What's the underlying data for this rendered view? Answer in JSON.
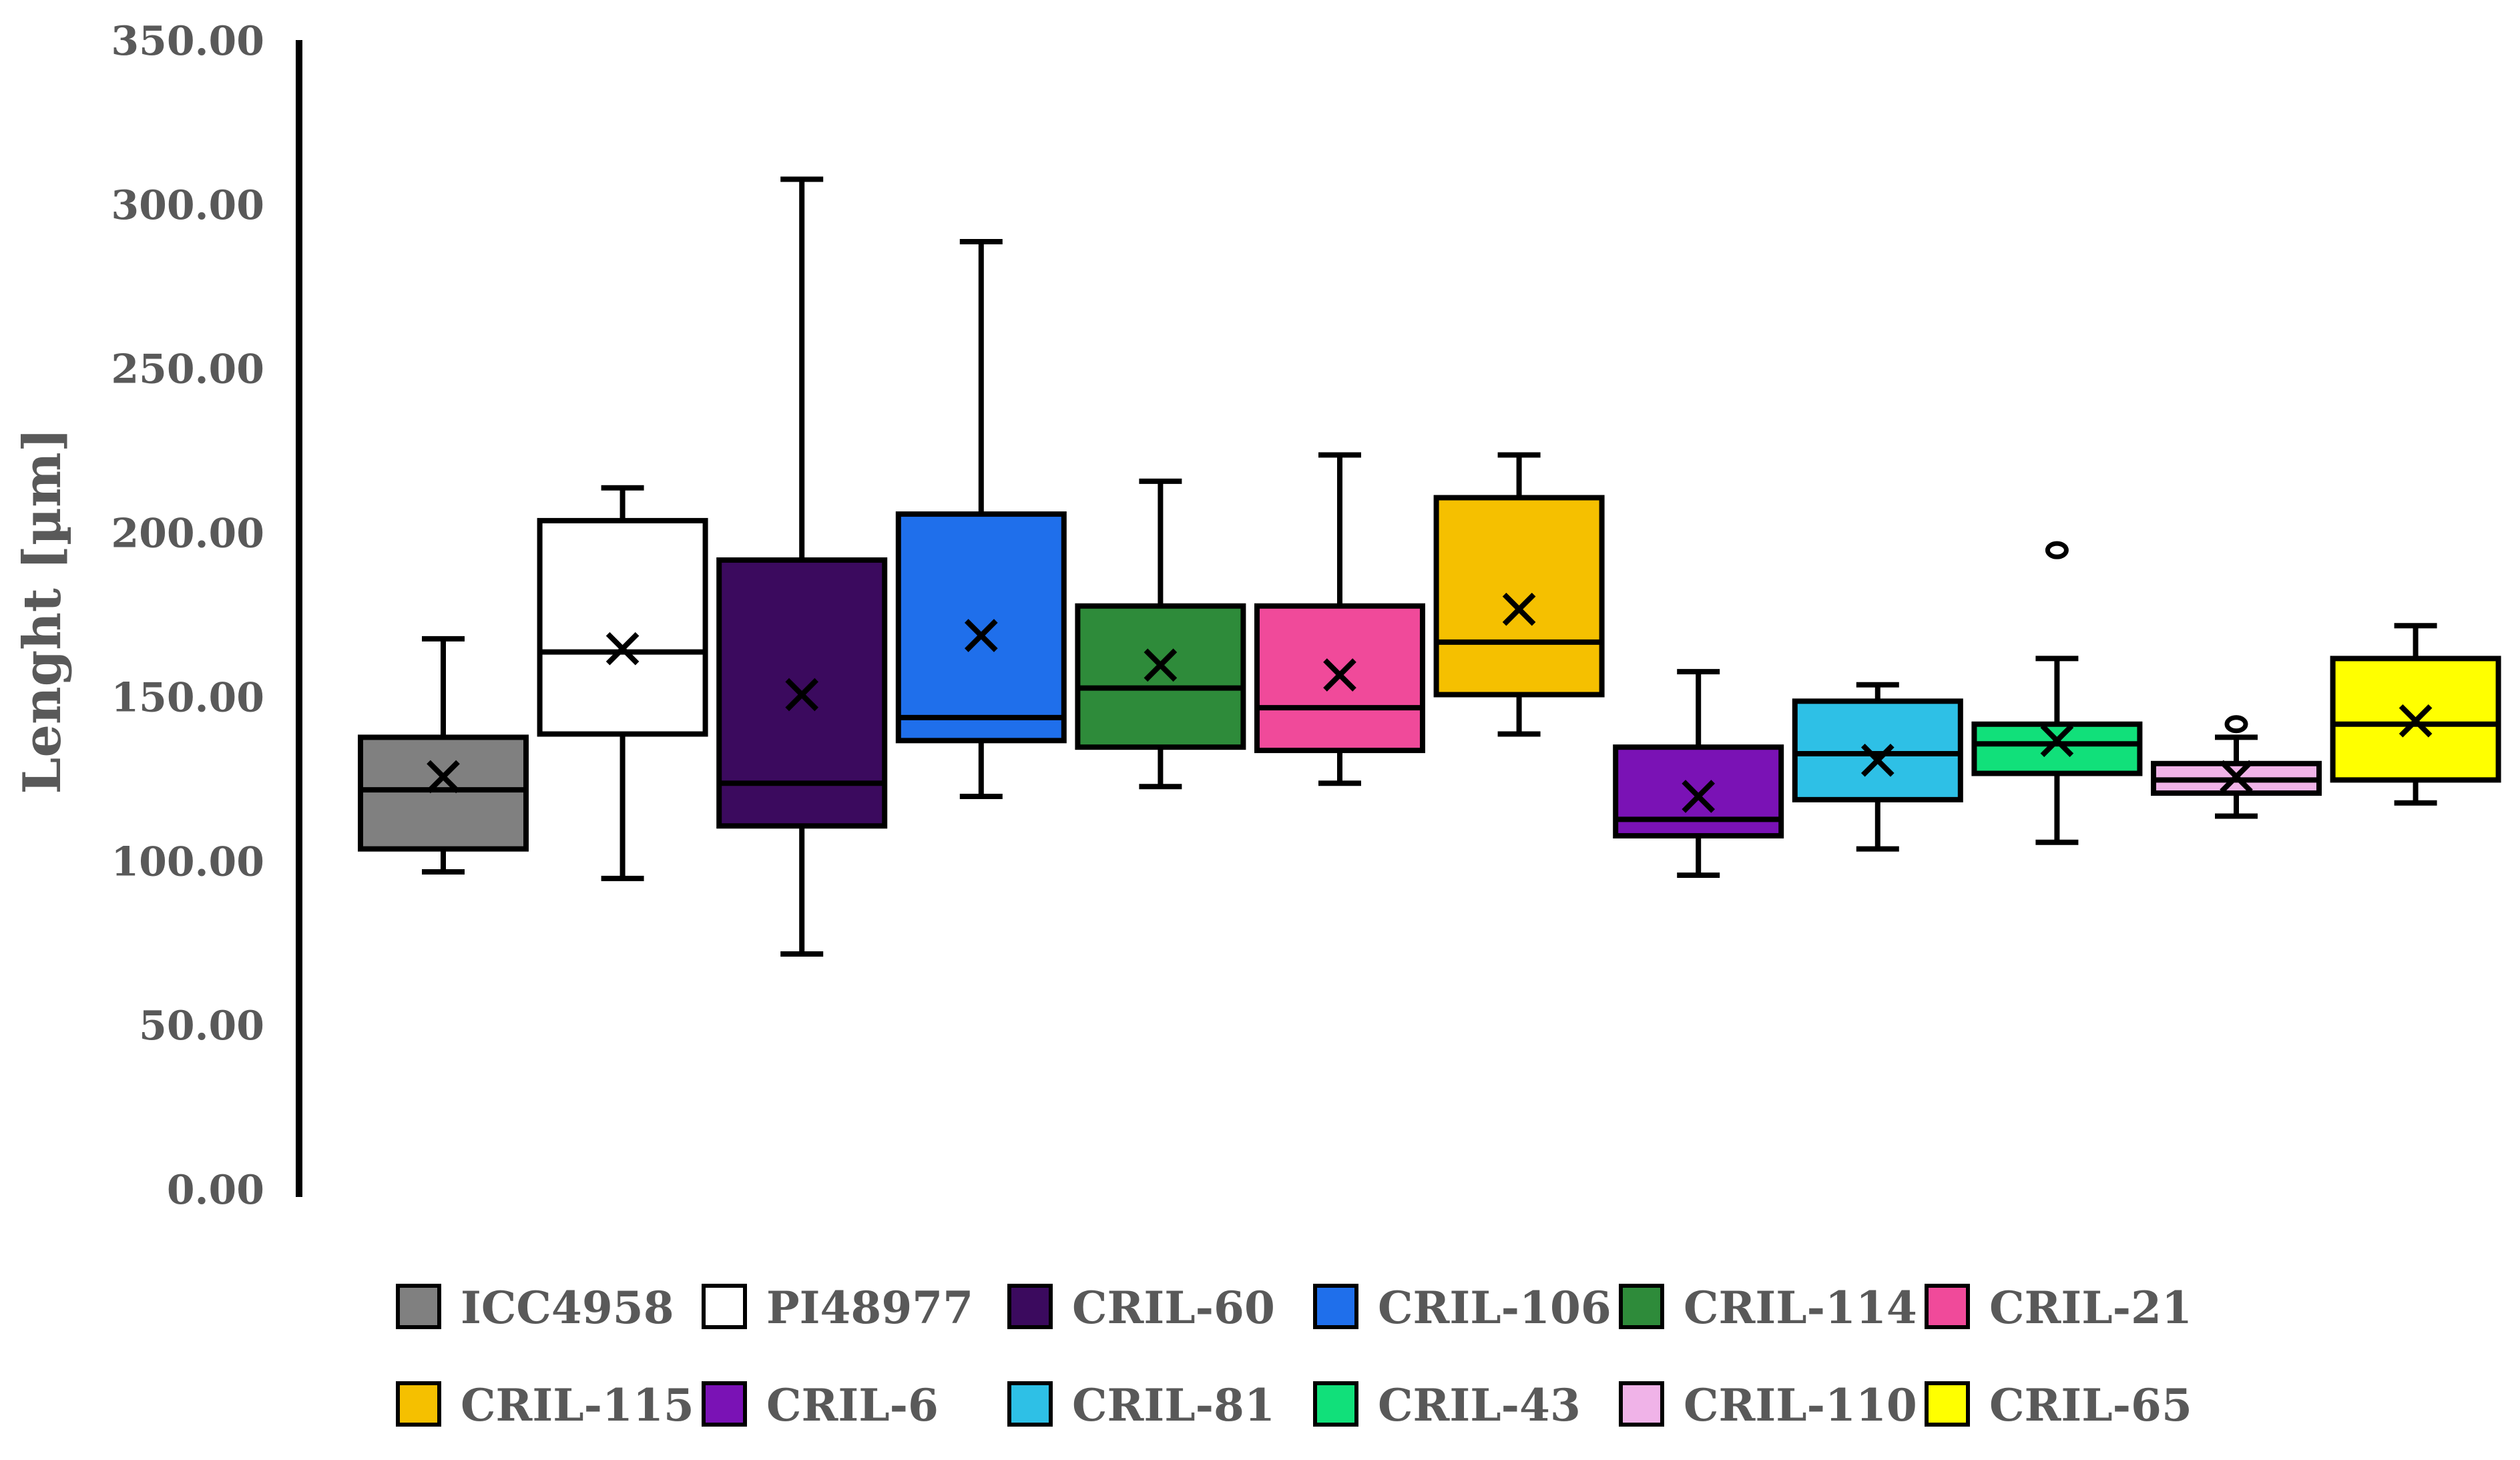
{
  "chart_data": {
    "type": "box",
    "title": "",
    "xlabel": "",
    "ylabel": "Lenght [µm]",
    "ylim": [
      0,
      350
    ],
    "yticks": [
      "0.00",
      "50.00",
      "100.00",
      "150.00",
      "200.00",
      "250.00",
      "300.00",
      "350.00"
    ],
    "grid": false,
    "legend_position": "bottom",
    "series": [
      {
        "name": "ICC4958",
        "color": "#808080",
        "min": 97,
        "q1": 104,
        "median": 122,
        "q3": 138,
        "max": 168,
        "mean": 126,
        "outliers": []
      },
      {
        "name": "PI48977",
        "color": "#ffffff",
        "min": 95,
        "q1": 139,
        "median": 164,
        "q3": 204,
        "max": 214,
        "mean": 165,
        "outliers": []
      },
      {
        "name": "CRIL-60",
        "color": "#3b0a5e",
        "min": 72,
        "q1": 111,
        "median": 124,
        "q3": 192,
        "max": 308,
        "mean": 151,
        "outliers": []
      },
      {
        "name": "CRIL-106",
        "color": "#1f6feb",
        "min": 120,
        "q1": 137,
        "median": 144,
        "q3": 206,
        "max": 289,
        "mean": 169,
        "outliers": []
      },
      {
        "name": "CRIL-114",
        "color": "#2e8b3a",
        "min": 123,
        "q1": 135,
        "median": 153,
        "q3": 178,
        "max": 216,
        "mean": 160,
        "outliers": []
      },
      {
        "name": "CRIL-21",
        "color": "#f04a9a",
        "min": 124,
        "q1": 134,
        "median": 147,
        "q3": 178,
        "max": 224,
        "mean": 157,
        "outliers": []
      },
      {
        "name": "CRIL-115",
        "color": "#f5c000",
        "min": 139,
        "q1": 151,
        "median": 167,
        "q3": 211,
        "max": 224,
        "mean": 177,
        "outliers": []
      },
      {
        "name": "CRIL-6",
        "color": "#7a12b5",
        "min": 96,
        "q1": 108,
        "median": 113,
        "q3": 135,
        "max": 158,
        "mean": 120,
        "outliers": []
      },
      {
        "name": "CRIL-81",
        "color": "#2ec0e6",
        "min": 104,
        "q1": 119,
        "median": 133,
        "q3": 149,
        "max": 154,
        "mean": 131,
        "outliers": []
      },
      {
        "name": "CRIL-43",
        "color": "#11e07a",
        "min": 106,
        "q1": 127,
        "median": 136,
        "q3": 142,
        "max": 162,
        "mean": 137,
        "outliers": [
          195
        ]
      },
      {
        "name": "CRIL-110",
        "color": "#f0b3e8",
        "min": 114,
        "q1": 121,
        "median": 125,
        "q3": 130,
        "max": 138,
        "mean": 126,
        "outliers": [
          142
        ]
      },
      {
        "name": "CRIL-65",
        "color": "#ffff00",
        "min": 118,
        "q1": 125,
        "median": 142,
        "q3": 162,
        "max": 172,
        "mean": 143,
        "outliers": []
      }
    ]
  }
}
